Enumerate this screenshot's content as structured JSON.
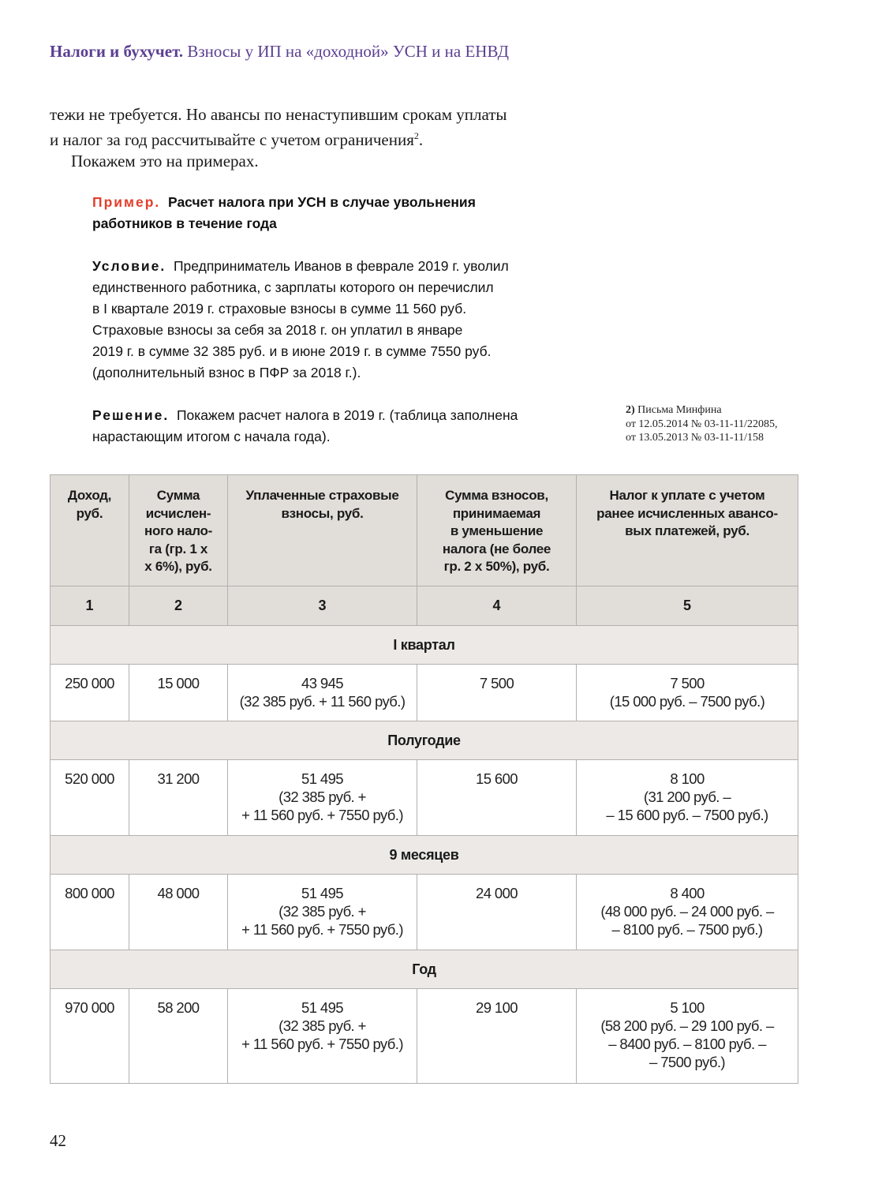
{
  "header": {
    "section": "Налоги и бухучет.",
    "title": "Взносы у ИП на «доходной» УСН и на ЕНВД"
  },
  "body": {
    "line1": "тежи не требуется. Но авансы по ненаступившим срокам уплаты",
    "line2": "и налог за год рассчитывайте с учетом ограничения",
    "footnote_ref": "2",
    "line2_end": ".",
    "line3": "Покажем это на примерах."
  },
  "example": {
    "label": "Пример.",
    "title": "Расчет налога при УСН в случае увольнения работников в течение года",
    "condition_label": "Условие.",
    "condition_lines": [
      "Предприниматель Иванов в феврале 2019 г. уволил",
      "единственного работника, с зарплаты которого он перечислил",
      "в I квартале 2019 г. страховые взносы в сумме 11 560 руб.",
      "Страховые взносы за себя за 2018 г. он уплатил в январе",
      "2019 г. в сумме 32 385 руб. и в июне 2019 г. в сумме 7550 руб.",
      "(дополнительный взнос в ПФР за 2018 г.)."
    ],
    "solution_label": "Решение.",
    "solution_lines": [
      "Покажем расчет налога в 2019 г. (таблица заполнена",
      "нарастающим итогом с начала года)."
    ]
  },
  "footnote": {
    "num": "2)",
    "lines": [
      "Письма Минфина",
      "от 12.05.2014 № 03-11-11/22085,",
      "от 13.05.2013 № 03-11-11/158"
    ]
  },
  "table": {
    "headers": [
      [
        "Доход,",
        "руб."
      ],
      [
        "Сумма",
        "исчислен-",
        "ного нало-",
        "га (гр. 1 х",
        "х 6%), руб."
      ],
      [
        "Уплаченные страховые",
        "взносы, руб."
      ],
      [
        "Сумма взносов,",
        "принимаемая",
        "в уменьшение",
        "налога (не более",
        "гр. 2 х 50%), руб."
      ],
      [
        "Налог к уплате с учетом",
        "ранее исчисленных авансо-",
        "вых платежей, руб."
      ]
    ],
    "numbers": [
      "1",
      "2",
      "3",
      "4",
      "5"
    ],
    "sections": [
      {
        "title": "I квартал",
        "cells": [
          [
            "250 000"
          ],
          [
            "15 000"
          ],
          [
            "43 945",
            "(32 385 руб. + 11 560 руб.)"
          ],
          [
            "7 500"
          ],
          [
            "7 500",
            "(15 000 руб. – 7500 руб.)"
          ]
        ]
      },
      {
        "title": "Полугодие",
        "cells": [
          [
            "520 000"
          ],
          [
            "31 200"
          ],
          [
            "51 495",
            "(32 385 руб. +",
            "+ 11 560 руб. + 7550 руб.)"
          ],
          [
            "15 600"
          ],
          [
            "8 100",
            "(31 200 руб. –",
            "– 15 600 руб. – 7500 руб.)"
          ]
        ]
      },
      {
        "title": "9 месяцев",
        "cells": [
          [
            "800 000"
          ],
          [
            "48 000"
          ],
          [
            "51 495",
            "(32 385 руб. +",
            "+ 11 560 руб. + 7550 руб.)"
          ],
          [
            "24 000"
          ],
          [
            "8 400",
            "(48 000 руб. – 24 000 руб. –",
            "– 8100 руб. – 7500 руб.)"
          ]
        ]
      },
      {
        "title": "Год",
        "cells": [
          [
            "970 000"
          ],
          [
            "58 200"
          ],
          [
            "51 495",
            "(32 385 руб. +",
            "+ 11 560 руб. + 7550 руб.)"
          ],
          [
            "29 100"
          ],
          [
            "5 100",
            "(58 200 руб. – 29 100 руб. –",
            "– 8400 руб. – 8100 руб. –",
            "– 7500 руб.)"
          ]
        ]
      }
    ]
  },
  "page_number": "42",
  "colors": {
    "accent_purple": "#5b3f92",
    "accent_red": "#e2402c",
    "header_bg": "#e1ddd9",
    "section_bg": "#ece9e6"
  }
}
